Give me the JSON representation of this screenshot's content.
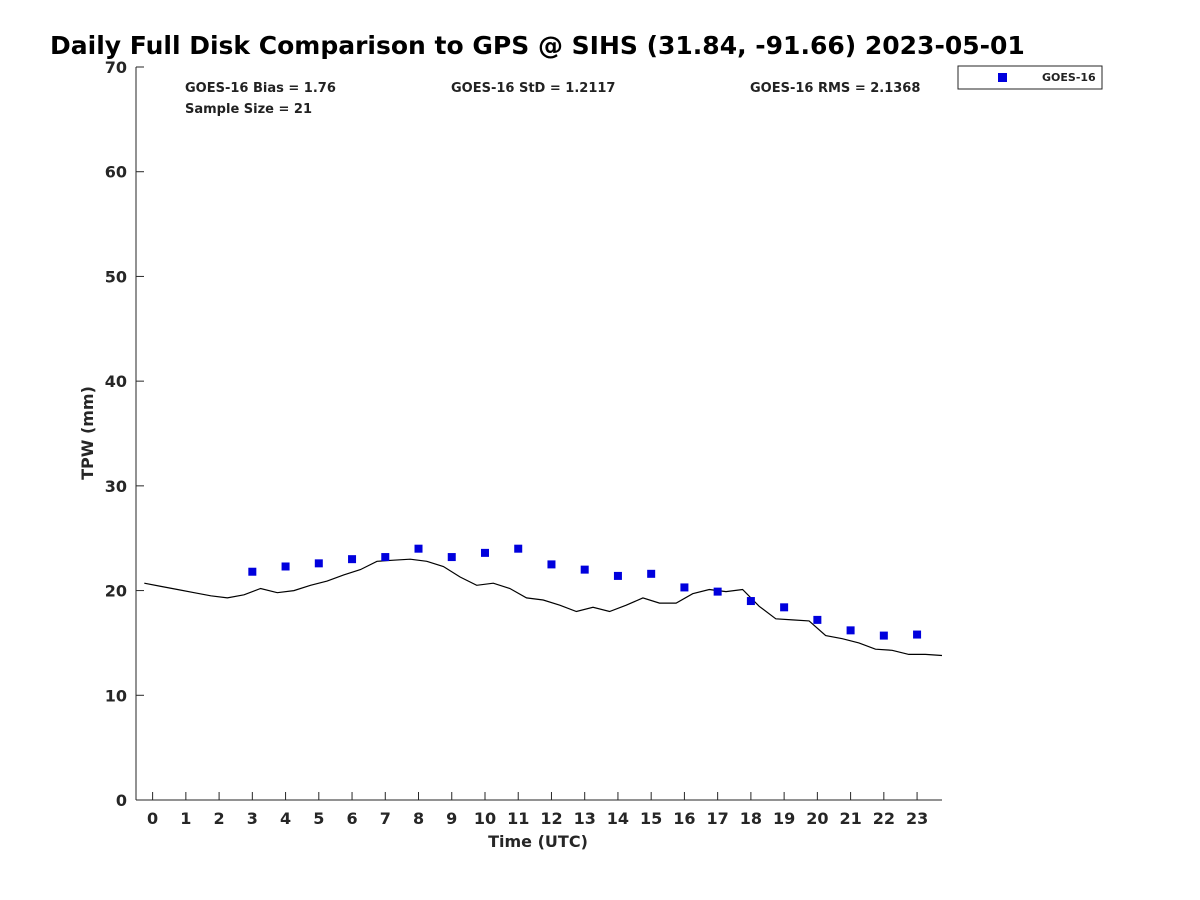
{
  "chart_data": {
    "type": "scatter",
    "title": "Daily Full Disk Comparison to GPS @ SIHS (31.84, -91.66) 2023-05-01",
    "xlabel": "Time (UTC)",
    "ylabel": "TPW (mm)",
    "xlim": [
      -0.5,
      23.75
    ],
    "ylim": [
      0,
      70
    ],
    "x_ticks": [
      0,
      1,
      2,
      3,
      4,
      5,
      6,
      7,
      8,
      9,
      10,
      11,
      12,
      13,
      14,
      15,
      16,
      17,
      18,
      19,
      20,
      21,
      22,
      23
    ],
    "y_ticks": [
      0,
      10,
      20,
      30,
      40,
      50,
      60,
      70
    ],
    "grid": false,
    "legend_position": "top-right",
    "stats": {
      "bias": "GOES-16 Bias = 1.76",
      "std": "GOES-16 StD = 1.2117",
      "rms": "GOES-16 RMS = 2.1368",
      "sample_size": "Sample Size = 21"
    },
    "series": [
      {
        "name": "GOES-16",
        "kind": "scatter",
        "marker": "square",
        "color": "#0000dd",
        "x": [
          3,
          4,
          5,
          6,
          7,
          8,
          9,
          10,
          11,
          12,
          13,
          14,
          15,
          16,
          17,
          18,
          19,
          20,
          21,
          22,
          23
        ],
        "y": [
          21.8,
          22.3,
          22.6,
          23.0,
          23.2,
          24.0,
          23.2,
          23.6,
          24.0,
          22.5,
          22.0,
          21.4,
          21.6,
          20.3,
          19.9,
          19.0,
          18.4,
          17.2,
          16.2,
          15.7,
          15.8
        ]
      },
      {
        "kind": "line",
        "color": "#000000",
        "x": [
          -0.25,
          0.25,
          0.75,
          1.25,
          1.75,
          2.25,
          2.75,
          3.25,
          3.75,
          4.25,
          4.75,
          5.25,
          5.75,
          6.25,
          6.75,
          7.25,
          7.75,
          8.25,
          8.75,
          9.25,
          9.75,
          10.25,
          10.75,
          11.25,
          11.75,
          12.25,
          12.75,
          13.25,
          13.75,
          14.25,
          14.75,
          15.25,
          15.75,
          16.25,
          16.75,
          17.25,
          17.75,
          18.25,
          18.75,
          19.25,
          19.75,
          20.25,
          20.75,
          21.25,
          21.75,
          22.25,
          22.75,
          23.25,
          23.75
        ],
        "y": [
          20.7,
          20.4,
          20.1,
          19.8,
          19.5,
          19.3,
          19.6,
          20.2,
          19.8,
          20.0,
          20.5,
          20.9,
          21.5,
          22.0,
          22.8,
          22.9,
          23.0,
          22.8,
          22.3,
          21.3,
          20.5,
          20.7,
          20.2,
          19.3,
          19.1,
          18.6,
          18.0,
          18.4,
          18.0,
          18.6,
          19.3,
          18.8,
          18.8,
          19.7,
          20.1,
          19.9,
          20.1,
          18.5,
          17.3,
          17.2,
          17.1,
          15.7,
          15.4,
          15.0,
          14.4,
          14.3,
          13.9,
          13.9,
          13.8
        ]
      }
    ]
  }
}
